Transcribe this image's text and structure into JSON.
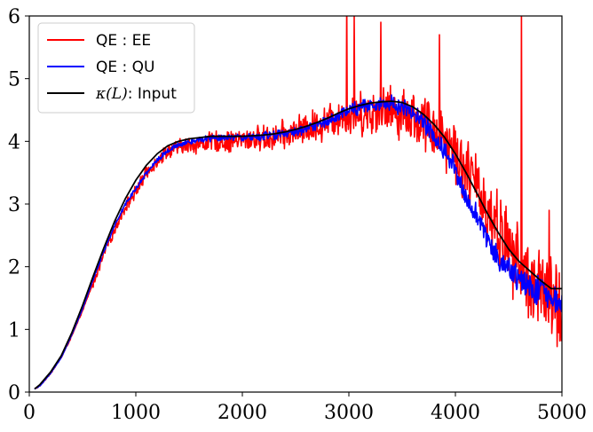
{
  "chart_data": {
    "type": "line",
    "title": "",
    "xlabel": "",
    "ylabel": "",
    "xlim": [
      0,
      5000
    ],
    "ylim": [
      0,
      6
    ],
    "x_ticks": [
      "0",
      "1000",
      "2000",
      "3000",
      "4000",
      "5000"
    ],
    "y_ticks": [
      "0",
      "1",
      "2",
      "3",
      "4",
      "5",
      "6"
    ],
    "grid": false,
    "legend_position": "upper-left",
    "legend": [
      {
        "label": "QE : EE",
        "color": "#ff0000"
      },
      {
        "label": "QE : QU",
        "color": "#0000ff"
      },
      {
        "label_math": "κ(L)",
        "label_suffix": ": Input",
        "color": "#000000"
      }
    ],
    "series": [
      {
        "name": "QE : EE",
        "color": "#ff0000",
        "noise_scale": 0.18,
        "spikes": [
          [
            2980,
            6.3
          ],
          [
            3050,
            6.0
          ],
          [
            3300,
            5.9
          ],
          [
            3850,
            5.7
          ],
          [
            4620,
            6.2
          ],
          [
            4880,
            2.9
          ]
        ],
        "x": [
          50,
          100,
          200,
          300,
          400,
          500,
          600,
          700,
          800,
          900,
          1000,
          1100,
          1200,
          1300,
          1400,
          1500,
          1600,
          1700,
          1800,
          1900,
          2000,
          2100,
          2200,
          2300,
          2400,
          2500,
          2600,
          2700,
          2800,
          2900,
          3000,
          3100,
          3200,
          3300,
          3400,
          3500,
          3600,
          3700,
          3800,
          3900,
          4000,
          4100,
          4200,
          4300,
          4400,
          4500,
          4600,
          4700,
          4800,
          4900,
          5000
        ],
        "y": [
          0.05,
          0.1,
          0.3,
          0.55,
          0.9,
          1.3,
          1.75,
          2.2,
          2.6,
          2.95,
          3.2,
          3.5,
          3.7,
          3.85,
          3.9,
          3.95,
          3.95,
          4.0,
          4.0,
          4.0,
          4.02,
          4.03,
          4.05,
          4.07,
          4.1,
          4.15,
          4.2,
          4.25,
          4.32,
          4.4,
          4.4,
          4.45,
          4.45,
          4.5,
          4.5,
          4.45,
          4.4,
          4.3,
          4.2,
          4.05,
          3.85,
          3.55,
          3.25,
          2.95,
          2.6,
          2.3,
          2.0,
          1.8,
          1.6,
          1.45,
          1.3
        ]
      },
      {
        "name": "QE : QU",
        "color": "#0000ff",
        "noise_scale": 0.06,
        "x": [
          50,
          100,
          200,
          300,
          400,
          500,
          600,
          700,
          800,
          900,
          1000,
          1100,
          1200,
          1300,
          1400,
          1500,
          1600,
          1700,
          1800,
          1900,
          2000,
          2100,
          2200,
          2300,
          2400,
          2500,
          2600,
          2700,
          2800,
          2900,
          3000,
          3100,
          3200,
          3300,
          3400,
          3500,
          3600,
          3700,
          3800,
          3900,
          4000,
          4100,
          4200,
          4300,
          4400,
          4500,
          4600,
          4700,
          4800,
          4900,
          5000
        ],
        "y": [
          0.05,
          0.1,
          0.3,
          0.55,
          0.92,
          1.33,
          1.8,
          2.25,
          2.65,
          3.0,
          3.25,
          3.5,
          3.7,
          3.85,
          3.95,
          4.0,
          4.03,
          4.05,
          4.05,
          4.05,
          4.06,
          4.07,
          4.08,
          4.1,
          4.12,
          4.16,
          4.2,
          4.26,
          4.33,
          4.42,
          4.5,
          4.55,
          4.58,
          4.6,
          4.6,
          4.55,
          4.45,
          4.3,
          4.1,
          3.85,
          3.55,
          3.15,
          2.8,
          2.45,
          2.15,
          1.95,
          1.8,
          1.7,
          1.6,
          1.5,
          1.45
        ]
      },
      {
        "name": "κ(L): Input",
        "color": "#000000",
        "noise_scale": 0,
        "x": [
          50,
          100,
          200,
          300,
          400,
          500,
          600,
          700,
          800,
          900,
          1000,
          1100,
          1200,
          1300,
          1400,
          1500,
          1600,
          1700,
          1800,
          1900,
          2000,
          2100,
          2200,
          2300,
          2400,
          2500,
          2600,
          2700,
          2800,
          2900,
          3000,
          3100,
          3200,
          3300,
          3400,
          3500,
          3600,
          3700,
          3800,
          3900,
          4000,
          4100,
          4200,
          4300,
          4400,
          4500,
          4600,
          4700,
          4800,
          4900,
          5000
        ],
        "y": [
          0.05,
          0.12,
          0.32,
          0.58,
          0.95,
          1.38,
          1.85,
          2.3,
          2.72,
          3.08,
          3.38,
          3.62,
          3.8,
          3.93,
          4.0,
          4.04,
          4.06,
          4.08,
          4.08,
          4.08,
          4.08,
          4.09,
          4.1,
          4.12,
          4.15,
          4.19,
          4.24,
          4.3,
          4.37,
          4.45,
          4.52,
          4.57,
          4.61,
          4.63,
          4.64,
          4.62,
          4.55,
          4.43,
          4.27,
          4.06,
          3.8,
          3.5,
          3.18,
          2.85,
          2.55,
          2.28,
          2.08,
          1.93,
          1.78,
          1.65,
          1.65
        ]
      }
    ]
  }
}
